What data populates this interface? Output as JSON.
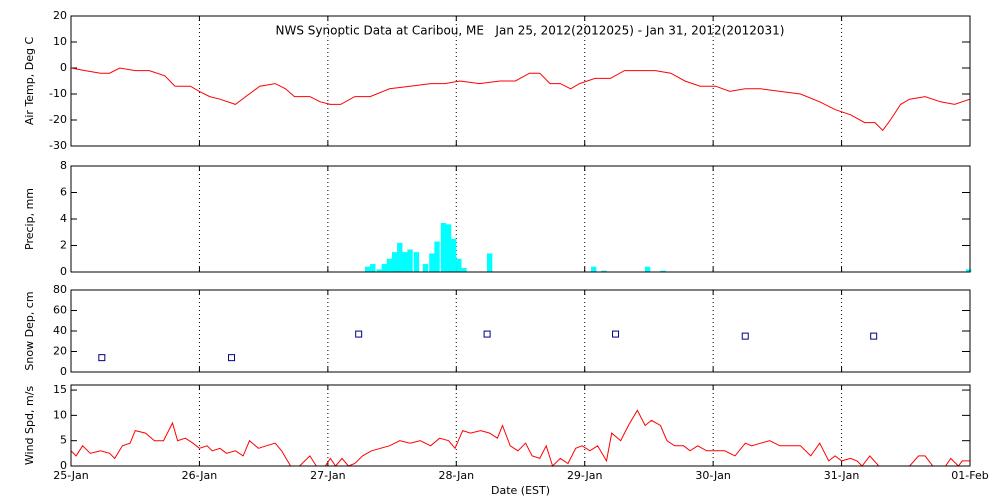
{
  "chart_data": [
    {
      "type": "line",
      "title": "NWS Synoptic Data at Caribou, ME   Jan 25, 2012(2012025) - Jan 31, 2012(2012031)",
      "ylabel": "Air Temp, Deg C",
      "color": "#ff0000",
      "grid": true,
      "ylim": [
        -30,
        20
      ],
      "yticks": [
        -30,
        -20,
        -10,
        0,
        10,
        20
      ],
      "x": [
        0,
        0.11,
        0.23,
        0.3,
        0.38,
        0.5,
        0.61,
        0.73,
        0.81,
        0.93,
        1.0,
        1.08,
        1.16,
        1.28,
        1.36,
        1.47,
        1.59,
        1.67,
        1.74,
        1.86,
        1.94,
        2.02,
        2.1,
        2.21,
        2.33,
        2.48,
        2.64,
        2.8,
        2.91,
        3.03,
        3.18,
        3.34,
        3.46,
        3.57,
        3.65,
        3.73,
        3.81,
        3.89,
        3.96,
        4.08,
        4.2,
        4.31,
        4.44,
        4.55,
        4.67,
        4.78,
        4.9,
        5.02,
        5.13,
        5.25,
        5.37,
        5.52,
        5.68,
        5.83,
        5.95,
        6.07,
        6.18,
        6.26,
        6.32,
        6.38,
        6.46,
        6.53,
        6.65,
        6.77,
        6.88,
        7.0
      ],
      "values": [
        0,
        -1,
        -2,
        -2,
        0,
        -1,
        -1,
        -3,
        -7,
        -7,
        -9,
        -11,
        -12,
        -14,
        -11,
        -7,
        -6,
        -8,
        -11,
        -11,
        -13,
        -14,
        -14,
        -11,
        -11,
        -8,
        -7,
        -6,
        -6,
        -5,
        -6,
        -5,
        -5,
        -2,
        -2,
        -6,
        -6,
        -8,
        -6,
        -4,
        -4,
        -1,
        -1,
        -1,
        -2,
        -5,
        -7,
        -7,
        -9,
        -8,
        -8,
        -9,
        -10,
        -13,
        -16,
        -18,
        -21,
        -21,
        -24,
        -20,
        -14,
        -12,
        -11,
        -13,
        -14,
        -12
      ]
    },
    {
      "type": "bar",
      "ylabel": "Precip, mm",
      "color": "#00ffff",
      "grid": true,
      "ylim": [
        0,
        8
      ],
      "yticks": [
        0,
        2,
        4,
        6,
        8
      ],
      "x": [
        2.31,
        2.35,
        2.4,
        2.44,
        2.48,
        2.52,
        2.56,
        2.6,
        2.64,
        2.69,
        2.76,
        2.81,
        2.85,
        2.9,
        2.94,
        2.98,
        3.02,
        3.06,
        3.26,
        4.07,
        4.15,
        4.49,
        4.61,
        6.99
      ],
      "values": [
        0.4,
        0.6,
        0.2,
        0.6,
        1.0,
        1.5,
        2.2,
        1.5,
        1.7,
        1.5,
        0.6,
        1.4,
        2.3,
        3.7,
        3.6,
        2.5,
        1.0,
        0.3,
        1.4,
        0.4,
        0.1,
        0.4,
        0.1,
        0.2
      ]
    },
    {
      "type": "scatter",
      "ylabel": "Snow Dep, cm",
      "color": "#000080",
      "grid": true,
      "ylim": [
        0,
        80
      ],
      "yticks": [
        0,
        20,
        40,
        60,
        80
      ],
      "x": [
        0.24,
        1.25,
        2.24,
        3.24,
        4.24,
        5.25,
        6.25
      ],
      "values": [
        14,
        14,
        37,
        37,
        37,
        35,
        35
      ]
    },
    {
      "type": "line",
      "ylabel": "Wind Spd, m/s",
      "xlabel": "Date (EST)",
      "color": "#ff0000",
      "grid": true,
      "ylim": [
        0,
        16
      ],
      "yticks": [
        0,
        5,
        10,
        15
      ],
      "xlim": [
        0,
        7
      ],
      "xticks": [
        {
          "value": 0,
          "label": "25-Jan"
        },
        {
          "value": 1,
          "label": "26-Jan"
        },
        {
          "value": 2,
          "label": "27-Jan"
        },
        {
          "value": 3,
          "label": "28-Jan"
        },
        {
          "value": 4,
          "label": "29-Jan"
        },
        {
          "value": 5,
          "label": "30-Jan"
        },
        {
          "value": 6,
          "label": "31-Jan"
        },
        {
          "value": 7,
          "label": "01-Feb"
        }
      ],
      "x": [
        0.0,
        0.04,
        0.09,
        0.15,
        0.23,
        0.3,
        0.34,
        0.4,
        0.46,
        0.5,
        0.58,
        0.65,
        0.72,
        0.79,
        0.83,
        0.89,
        0.95,
        1.0,
        1.06,
        1.1,
        1.16,
        1.21,
        1.28,
        1.34,
        1.39,
        1.46,
        1.52,
        1.59,
        1.64,
        1.71,
        1.78,
        1.86,
        1.91,
        1.98,
        2.02,
        2.06,
        2.11,
        2.16,
        2.21,
        2.27,
        2.34,
        2.41,
        2.48,
        2.56,
        2.64,
        2.72,
        2.8,
        2.87,
        2.94,
        2.99,
        3.05,
        3.11,
        3.19,
        3.26,
        3.32,
        3.36,
        3.42,
        3.48,
        3.54,
        3.59,
        3.65,
        3.7,
        3.75,
        3.81,
        3.87,
        3.93,
        3.98,
        4.04,
        4.1,
        4.17,
        4.21,
        4.28,
        4.34,
        4.41,
        4.47,
        4.52,
        4.59,
        4.64,
        4.7,
        4.77,
        4.82,
        4.88,
        4.95,
        5.02,
        5.09,
        5.17,
        5.25,
        5.3,
        5.37,
        5.44,
        5.52,
        5.6,
        5.68,
        5.76,
        5.83,
        5.9,
        5.95,
        6.0,
        6.07,
        6.12,
        6.16,
        6.22,
        6.29,
        6.38,
        6.53,
        6.6,
        6.65,
        6.71,
        6.81,
        6.85,
        6.91,
        6.94,
        7.0
      ],
      "values": [
        3,
        2,
        4,
        2.5,
        3,
        2.5,
        1.5,
        4,
        4.5,
        7,
        6.5,
        5,
        5,
        8.5,
        5,
        5.5,
        4.5,
        3.5,
        4,
        3,
        3.5,
        2.5,
        3,
        2,
        5,
        3.5,
        4,
        4.5,
        3,
        0,
        0,
        2,
        0,
        0,
        1.5,
        0,
        1.5,
        0,
        0.5,
        2,
        3,
        3.5,
        4,
        5,
        4.5,
        5,
        4,
        5.5,
        5,
        3.5,
        7,
        6.5,
        7,
        6.5,
        5.5,
        8,
        4,
        3,
        4.5,
        2,
        1.5,
        4,
        0,
        1.5,
        0.5,
        3.5,
        4,
        3,
        4,
        1,
        6.5,
        5,
        8,
        11,
        8,
        9,
        8,
        5,
        4,
        4,
        3,
        4,
        3,
        3,
        3,
        2,
        4.5,
        4,
        4.5,
        5,
        4,
        4,
        4,
        2,
        4.5,
        1,
        2,
        1,
        1.5,
        1,
        0,
        2,
        0,
        0,
        0,
        2,
        2,
        0,
        0,
        1.5,
        0,
        1,
        1
      ]
    }
  ]
}
